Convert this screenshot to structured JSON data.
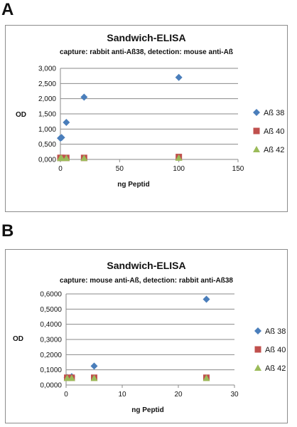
{
  "panels": [
    {
      "label": "A"
    },
    {
      "label": "B"
    }
  ],
  "chart_data": [
    {
      "type": "scatter",
      "title": "Sandwich-ELISA",
      "subtitle": "capture: rabbit anti-Aß38, detection: mouse anti-Aß",
      "xlabel": "ng Peptid",
      "ylabel": "OD",
      "xlim": [
        0,
        150
      ],
      "ylim": [
        0,
        3
      ],
      "x_ticks": [
        "0",
        "50",
        "100",
        "150"
      ],
      "y_ticks": [
        "0,000",
        "0,500",
        "1,000",
        "1,500",
        "2,000",
        "2,500",
        "3,000"
      ],
      "grid": "horizontal",
      "legend": "right",
      "series": [
        {
          "name": "Aß 38",
          "marker": "diamond",
          "color": "#4a7ebb",
          "points": [
            [
              0,
              0.7
            ],
            [
              1,
              0.72
            ],
            [
              5,
              1.22
            ],
            [
              20,
              2.05
            ],
            [
              100,
              2.7
            ]
          ]
        },
        {
          "name": "Aß 40",
          "marker": "square",
          "color": "#c0504d",
          "points": [
            [
              0,
              0.05
            ],
            [
              1,
              0.05
            ],
            [
              5,
              0.05
            ],
            [
              20,
              0.05
            ],
            [
              100,
              0.08
            ]
          ]
        },
        {
          "name": "Aß 42",
          "marker": "triangle",
          "color": "#9bbb59",
          "points": [
            [
              0,
              0.04
            ],
            [
              1,
              0.04
            ],
            [
              5,
              0.04
            ],
            [
              20,
              0.04
            ],
            [
              100,
              0.05
            ]
          ]
        }
      ]
    },
    {
      "type": "scatter",
      "title": "Sandwich-ELISA",
      "subtitle": "capture: mouse anti-Aß, detection: rabbit anti-Aß38",
      "xlabel": "ng Peptid",
      "ylabel": "OD",
      "xlim": [
        0,
        30
      ],
      "ylim": [
        0,
        0.6
      ],
      "x_ticks": [
        "0",
        "10",
        "20",
        "30"
      ],
      "y_ticks": [
        "0,0000",
        "0,1000",
        "0,2000",
        "0,3000",
        "0,4000",
        "0,5000",
        "0,6000"
      ],
      "grid": "horizontal",
      "legend": "right",
      "series": [
        {
          "name": "Aß 38",
          "marker": "diamond",
          "color": "#4a7ebb",
          "points": [
            [
              0.2,
              0.05
            ],
            [
              1,
              0.055
            ],
            [
              5,
              0.125
            ],
            [
              25,
              0.565
            ]
          ]
        },
        {
          "name": "Aß 40",
          "marker": "square",
          "color": "#c0504d",
          "points": [
            [
              0.2,
              0.048
            ],
            [
              1,
              0.048
            ],
            [
              5,
              0.048
            ],
            [
              25,
              0.048
            ]
          ]
        },
        {
          "name": "Aß 42",
          "marker": "triangle",
          "color": "#9bbb59",
          "points": [
            [
              0.2,
              0.045
            ],
            [
              1,
              0.045
            ],
            [
              5,
              0.045
            ],
            [
              25,
              0.045
            ]
          ]
        }
      ]
    }
  ]
}
